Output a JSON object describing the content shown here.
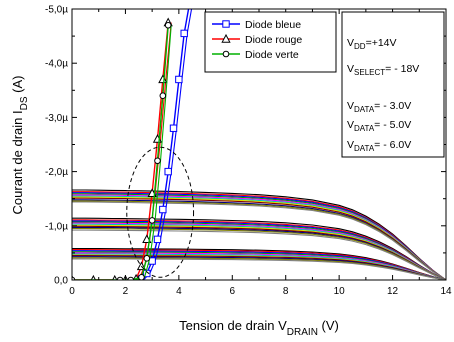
{
  "chart_data": {
    "type": "line",
    "xlabel": {
      "main": "Tension de drain V",
      "sub": "DRAIN",
      "unit": " (V)"
    },
    "ylabel": {
      "main": "Courant de drain I",
      "sub": "DS",
      "unit": " (A)"
    },
    "xlim": [
      0,
      14
    ],
    "ylim": [
      0,
      -5e-06
    ],
    "x_ticks": [
      0,
      2,
      4,
      6,
      8,
      10,
      12,
      14
    ],
    "x_tick_labels": [
      "0",
      "2",
      "4",
      "6",
      "8",
      "10",
      "12",
      "14"
    ],
    "y_ticks": [
      0,
      -1e-06,
      -2e-06,
      -3e-06,
      -4e-06,
      -5e-06
    ],
    "y_tick_labels": [
      "0,0",
      "-1,0µ",
      "-2,0µ",
      "-3,0µ",
      "-4,0µ",
      "-5,0µ"
    ],
    "grid": false,
    "legend_position": "top-right",
    "legend": [
      {
        "name": "Diode bleue",
        "color": "#0000ff",
        "marker": "square"
      },
      {
        "name": "Diode rouge",
        "color": "#ff0000",
        "marker": "triangle"
      },
      {
        "name": "Diode verte",
        "color": "#00b000",
        "marker": "circle"
      }
    ],
    "annotations": [
      {
        "parts": [
          [
            "V",
            ""
          ],
          [
            "DD",
            "sub"
          ],
          [
            "=+14V",
            ""
          ]
        ]
      },
      {
        "parts": [
          [
            "V",
            ""
          ],
          [
            "SELECT",
            "sub"
          ],
          [
            "= - 18V",
            ""
          ]
        ]
      },
      {
        "parts": [
          [
            "V",
            ""
          ],
          [
            "DATA",
            "sub"
          ],
          [
            "= - 3.0V",
            ""
          ]
        ]
      },
      {
        "parts": [
          [
            "V",
            ""
          ],
          [
            "DATA",
            "sub"
          ],
          [
            "= - 5.0V",
            ""
          ]
        ]
      },
      {
        "parts": [
          [
            "V",
            ""
          ],
          [
            "DATA",
            "sub"
          ],
          [
            "= - 6.0V",
            ""
          ]
        ]
      }
    ],
    "diode_series": [
      {
        "name": "Diode bleue",
        "color": "#0000ff",
        "marker": "square",
        "x": [
          2.6,
          2.8,
          3.0,
          3.2,
          3.4,
          3.6,
          3.8,
          4.0,
          4.2,
          4.4
        ],
        "y": [
          -2e-08,
          -1.2e-07,
          -3.5e-07,
          -7.5e-07,
          -1.3e-06,
          -2e-06,
          -2.8e-06,
          -3.7e-06,
          -4.55e-06,
          -5.1e-06
        ]
      },
      {
        "name": "Diode rouge",
        "color": "#ff0000",
        "marker": "triangle",
        "x": [
          0.0,
          0.8,
          1.6,
          2.0,
          2.4,
          2.6,
          2.8,
          3.0,
          3.2,
          3.4,
          3.6
        ],
        "y": [
          0,
          0,
          0,
          0,
          -2e-08,
          -2.5e-07,
          -7.5e-07,
          -1.6e-06,
          -2.6e-06,
          -3.7e-06,
          -4.75e-06
        ]
      },
      {
        "name": "Diode verte",
        "color": "#00b000",
        "marker": "circle",
        "x": [
          0.0,
          1.8,
          2.2,
          2.6,
          2.8,
          3.0,
          3.2,
          3.4,
          3.6
        ],
        "y": [
          0,
          0,
          0,
          -5e-08,
          -4e-07,
          -1.1e-06,
          -2.2e-06,
          -3.4e-06,
          -4.7e-06
        ]
      }
    ],
    "tft_curves": {
      "x": [
        0.0,
        0.5,
        1.0,
        1.5,
        2.0,
        2.5,
        3.0,
        4.0,
        5.0,
        6.0,
        7.0,
        8.0,
        9.0,
        10.0,
        10.5,
        11.0,
        11.5,
        12.0,
        12.5,
        13.0,
        13.5,
        14.0
      ],
      "shape": [
        1.0,
        1.0,
        0.998,
        0.996,
        0.994,
        0.991,
        0.988,
        0.982,
        0.974,
        0.963,
        0.948,
        0.925,
        0.89,
        0.83,
        0.78,
        0.71,
        0.62,
        0.51,
        0.38,
        0.24,
        0.11,
        0.0
      ],
      "colors": [
        "#000000",
        "#ff0000",
        "#0000ff",
        "#00a000",
        "#ff00ff",
        "#00c0c0",
        "#e0e000",
        "#800000",
        "#000080",
        "#808000",
        "#808080"
      ],
      "groups": [
        {
          "levels": [
            -1.66e-06,
            -1.63e-06,
            -1.61e-06,
            -1.59e-06,
            -1.57e-06,
            -1.55e-06,
            -1.53e-06,
            -1.51e-06,
            -1.48e-06,
            -1.46e-06,
            -1.44e-06
          ]
        },
        {
          "levels": [
            -1.14e-06,
            -1.11e-06,
            -1.09e-06,
            -1.07e-06,
            -1.05e-06,
            -1.03e-06,
            -1.01e-06,
            -9.9e-07,
            -9.7e-07,
            -9.5e-07,
            -9.2e-07
          ]
        },
        {
          "levels": [
            -5.8e-07,
            -5.6e-07,
            -5.4e-07,
            -5.2e-07,
            -5e-07,
            -4.8e-07,
            -4.6e-07,
            -4.5e-07,
            -4.3e-07,
            -4.1e-07,
            -3.9e-07
          ]
        }
      ]
    },
    "highlight_ellipse": {
      "cx": 3.3,
      "cy": -1.25e-06,
      "rx": 1.25,
      "ry": 1.2e-06,
      "style": "dashed"
    }
  }
}
